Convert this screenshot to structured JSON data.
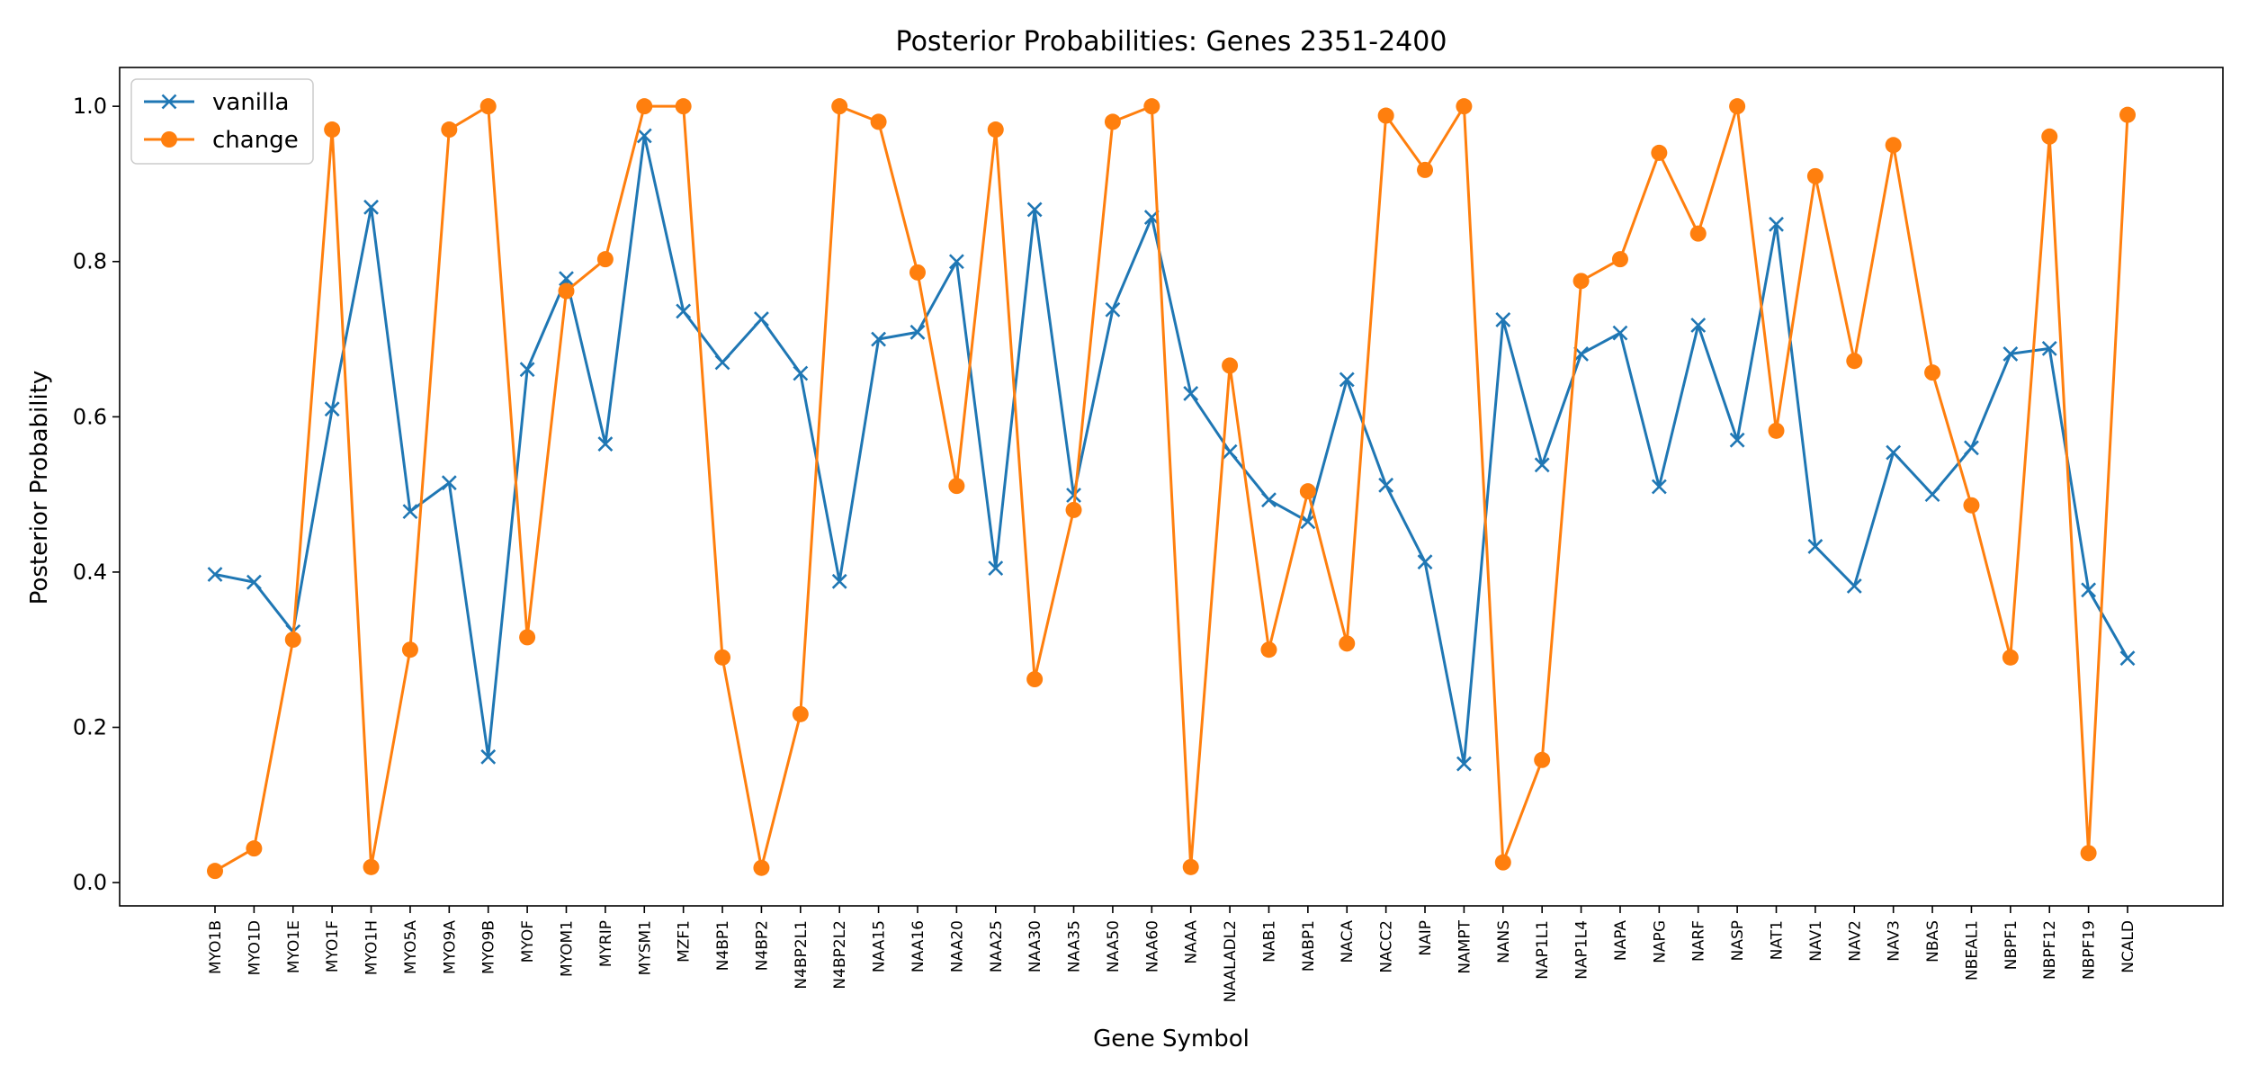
{
  "chart_data": {
    "type": "line",
    "title": "Posterior Probabilities: Genes 2351-2400",
    "xlabel": "Gene Symbol",
    "ylabel": "Posterior Probability",
    "ylim": [
      -0.03,
      1.05
    ],
    "yticks": [
      "0.0",
      "0.2",
      "0.4",
      "0.6",
      "0.8",
      "1.0"
    ],
    "grid": false,
    "legend_position": "top-left",
    "categories": [
      "MYO1B",
      "MYO1D",
      "MYO1E",
      "MYO1F",
      "MYO1H",
      "MYO5A",
      "MYO9A",
      "MYO9B",
      "MYOF",
      "MYOM1",
      "MYRIP",
      "MYSM1",
      "MZF1",
      "N4BP1",
      "N4BP2",
      "N4BP2L1",
      "N4BP2L2",
      "NAA15",
      "NAA16",
      "NAA20",
      "NAA25",
      "NAA30",
      "NAA35",
      "NAA50",
      "NAA60",
      "NAAA",
      "NAALADL2",
      "NAB1",
      "NABP1",
      "NACA",
      "NACC2",
      "NAIP",
      "NAMPT",
      "NANS",
      "NAP1L1",
      "NAP1L4",
      "NAPA",
      "NAPG",
      "NARF",
      "NASP",
      "NAT1",
      "NAV1",
      "NAV2",
      "NAV3",
      "NBAS",
      "NBEAL1",
      "NBPF1",
      "NBPF12",
      "NBPF19",
      "NCALD"
    ],
    "series": [
      {
        "name": "vanilla",
        "color": "#1f77b4",
        "marker": "x",
        "values": [
          0.397,
          0.387,
          0.323,
          0.61,
          0.87,
          0.478,
          0.515,
          0.162,
          0.661,
          0.778,
          0.565,
          0.962,
          0.736,
          0.67,
          0.726,
          0.656,
          0.388,
          0.7,
          0.709,
          0.8,
          0.405,
          0.867,
          0.499,
          0.738,
          0.857,
          0.63,
          0.555,
          0.493,
          0.465,
          0.648,
          0.512,
          0.413,
          0.153,
          0.725,
          0.538,
          0.681,
          0.708,
          0.51,
          0.718,
          0.57,
          0.848,
          0.433,
          0.382,
          0.554,
          0.5,
          0.56,
          0.681,
          0.688,
          0.377,
          0.289
        ]
      },
      {
        "name": "change",
        "color": "#ff7f0e",
        "marker": "o",
        "values": [
          0.015,
          0.044,
          0.313,
          0.97,
          0.02,
          0.3,
          0.97,
          1.0,
          0.316,
          0.762,
          0.803,
          1.0,
          1.0,
          0.29,
          0.019,
          0.217,
          1.0,
          0.98,
          0.786,
          0.511,
          0.97,
          0.262,
          0.48,
          0.98,
          1.0,
          0.02,
          0.666,
          0.3,
          0.504,
          0.308,
          0.988,
          0.918,
          1.0,
          0.026,
          0.158,
          0.775,
          0.803,
          0.94,
          0.836,
          1.0,
          0.582,
          0.91,
          0.672,
          0.95,
          0.657,
          0.486,
          0.29,
          0.961,
          0.038,
          0.989
        ]
      }
    ]
  }
}
